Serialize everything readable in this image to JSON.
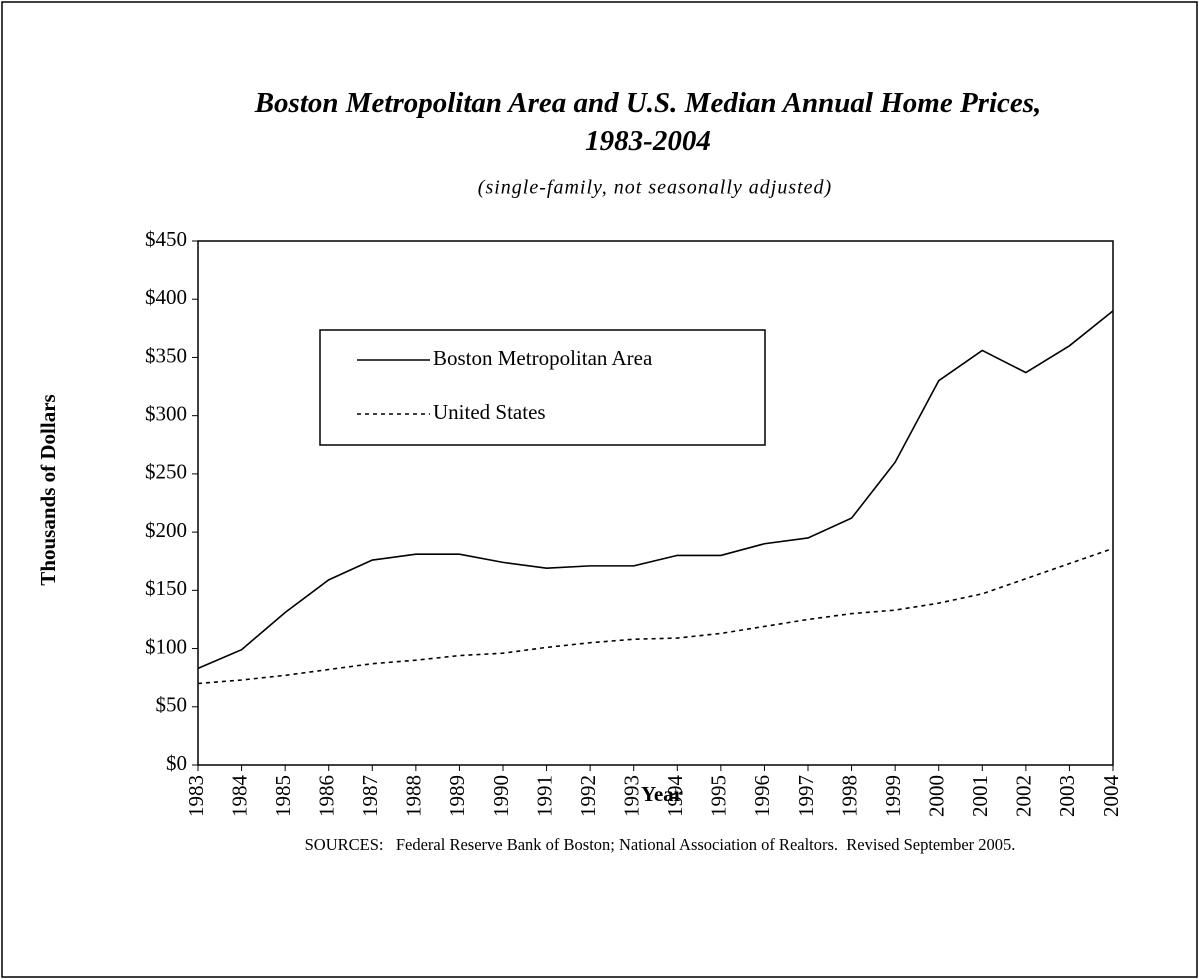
{
  "chart_data": {
    "type": "line",
    "title": "Boston Metropolitan Area and U.S. Median Annual Home Prices, 1983-2004",
    "subtitle": "(single-family, not seasonally adjusted)",
    "x_label": "Year",
    "y_label": "Thousands of Dollars",
    "source": "SOURCES:   Federal Reserve Bank of Boston; National Association of Realtors.  Revised September 2005.",
    "categories": [
      "1983",
      "1984",
      "1985",
      "1986",
      "1987",
      "1988",
      "1989",
      "1990",
      "1991",
      "1992",
      "1993",
      "1994",
      "1995",
      "1996",
      "1997",
      "1998",
      "1999",
      "2000",
      "2001",
      "2002",
      "2003",
      "2004"
    ],
    "series": [
      {
        "name": "Boston Metropolitan Area",
        "color": "#000000",
        "line_style": "solid",
        "values": [
          83,
          99,
          131,
          159,
          176,
          181,
          181,
          174,
          169,
          171,
          171,
          180,
          180,
          190,
          195,
          212,
          260,
          330,
          356,
          337,
          360,
          390
        ]
      },
      {
        "name": "United States",
        "color": "#000000",
        "line_style": "dotted",
        "values": [
          70,
          73,
          77,
          82,
          87,
          90,
          94,
          96,
          101,
          105,
          108,
          109,
          113,
          119,
          125,
          130,
          133,
          139,
          147,
          160,
          173,
          186
        ]
      }
    ],
    "ylim": [
      0,
      450
    ],
    "yticks": [
      {
        "value": 0,
        "label": "$0"
      },
      {
        "value": 50,
        "label": "$50"
      },
      {
        "value": 100,
        "label": "$100"
      },
      {
        "value": 150,
        "label": "$150"
      },
      {
        "value": 200,
        "label": "$200"
      },
      {
        "value": 250,
        "label": "$250"
      },
      {
        "value": 300,
        "label": "$300"
      },
      {
        "value": 350,
        "label": "$350"
      },
      {
        "value": 400,
        "label": "$400"
      },
      {
        "value": 450,
        "label": "$450"
      }
    ],
    "grid": false,
    "legend": "upper left"
  }
}
